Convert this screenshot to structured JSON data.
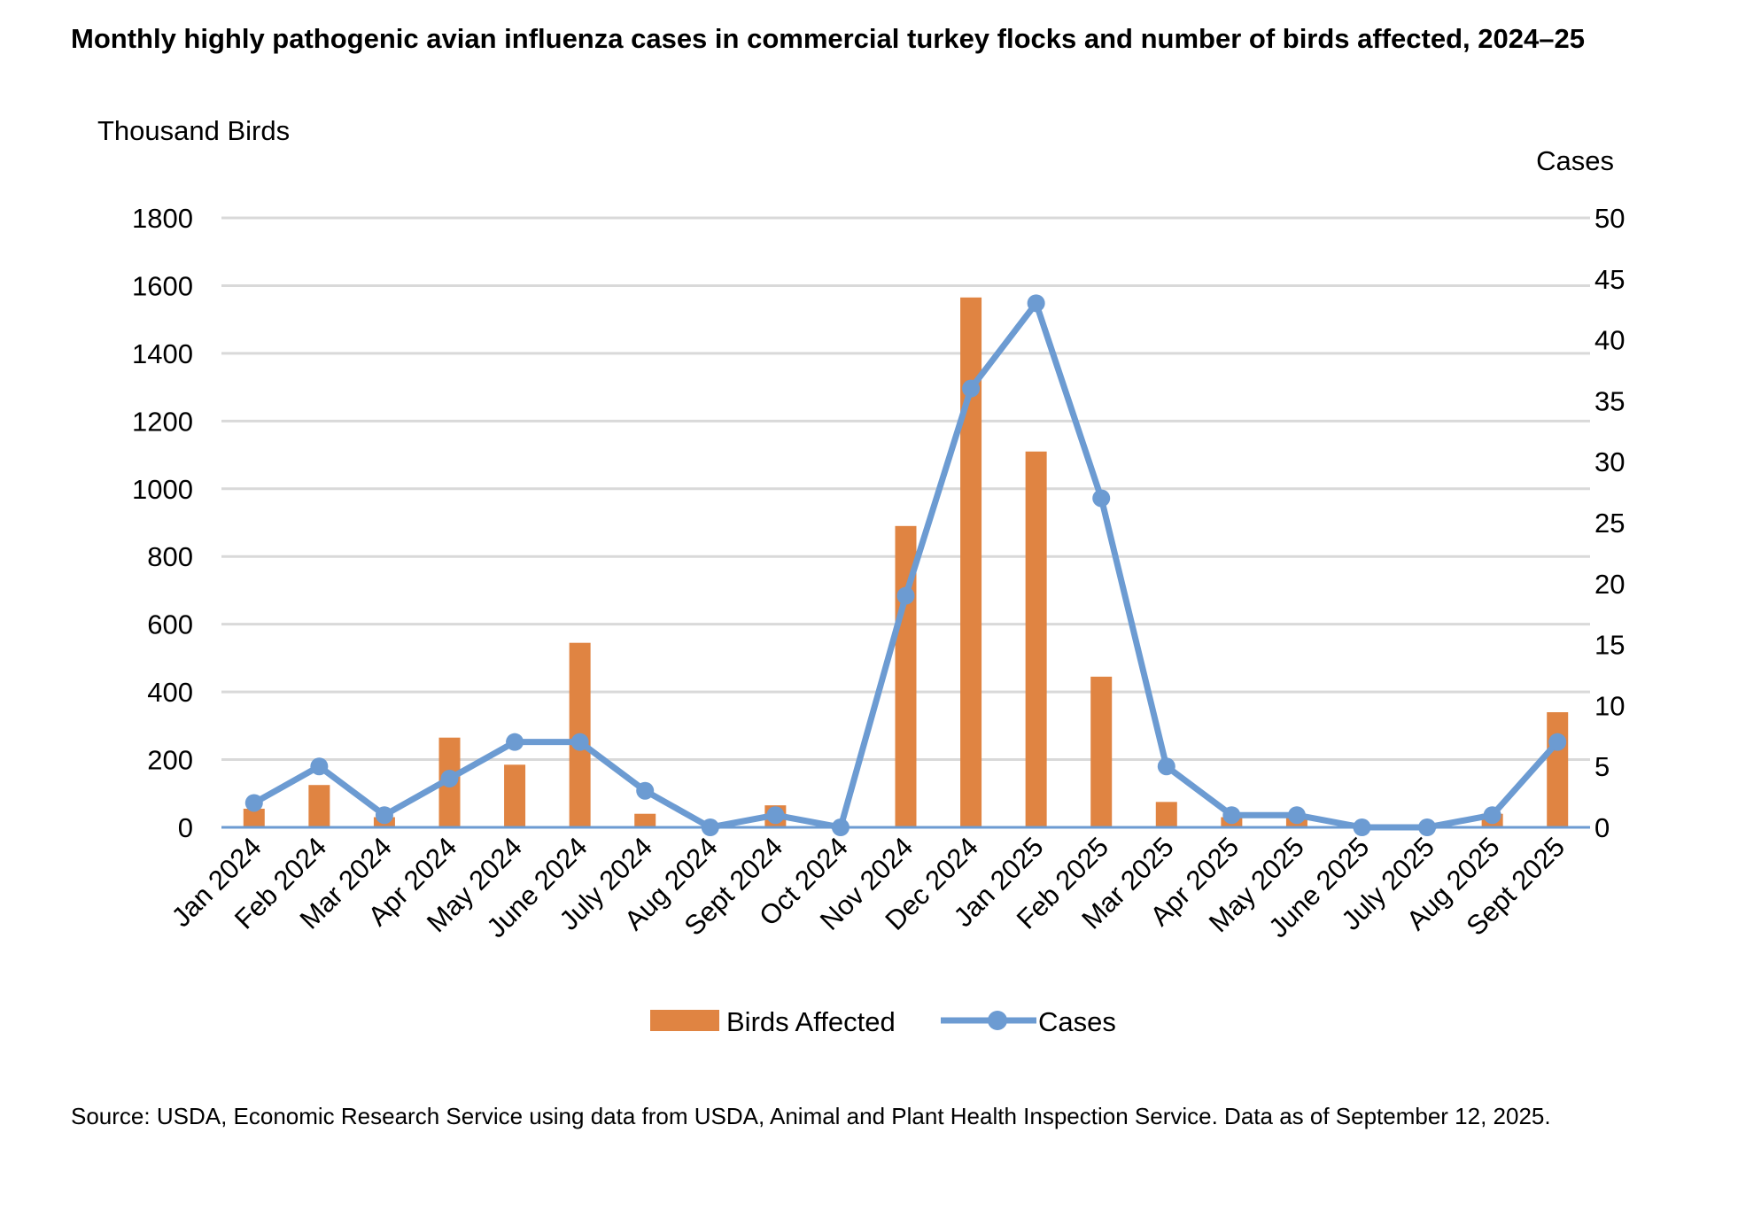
{
  "chart_data": {
    "type": "bar+line",
    "title": "Monthly highly pathogenic avian influenza cases in commercial turkey flocks and number of birds affected, 2024–25",
    "categories": [
      "Jan 2024",
      "Feb 2024",
      "Mar 2024",
      "Apr 2024",
      "May 2024",
      "June 2024",
      "July 2024",
      "Aug 2024",
      "Sept 2024",
      "Oct 2024",
      "Nov 2024",
      "Dec 2024",
      "Jan 2025",
      "Feb 2025",
      "Mar 2025",
      "Apr 2025",
      "May 2025",
      "June 2025",
      "July 2025",
      "Aug 2025",
      "Sept 2025"
    ],
    "series": [
      {
        "name": "Birds Affected",
        "type": "bar",
        "axis": "left",
        "color": "#E08442",
        "values": [
          55,
          125,
          30,
          265,
          185,
          545,
          40,
          0,
          65,
          0,
          890,
          1565,
          1110,
          445,
          75,
          30,
          30,
          0,
          0,
          40,
          340
        ]
      },
      {
        "name": "Cases",
        "type": "line",
        "axis": "right",
        "color": "#6C9BD2",
        "values": [
          2,
          5,
          1,
          4,
          7,
          7,
          3,
          0,
          1,
          0,
          19,
          36,
          43,
          27,
          5,
          1,
          1,
          0,
          0,
          1,
          7
        ]
      }
    ],
    "ylabel_left": "Thousand Birds",
    "ylabel_right": "Cases",
    "ylim_left": [
      0,
      1800
    ],
    "yticks_left": [
      0,
      200,
      400,
      600,
      800,
      1000,
      1200,
      1400,
      1600,
      1800
    ],
    "ylim_right": [
      0,
      50
    ],
    "yticks_right": [
      0,
      5,
      10,
      15,
      20,
      25,
      30,
      35,
      40,
      45,
      50
    ],
    "grid": true,
    "legend": "bottom",
    "source": "Source: USDA, Economic Research Service using data from USDA, Animal and Plant Health Inspection Service. Data as of September 12, 2025."
  }
}
